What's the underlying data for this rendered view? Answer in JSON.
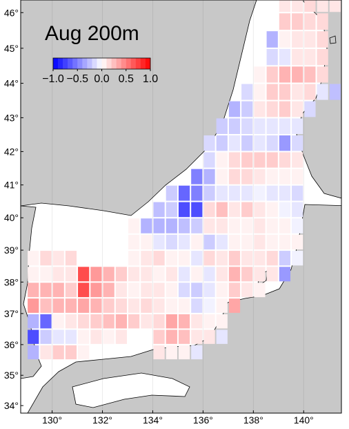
{
  "chart_data": {
    "type": "heatmap",
    "title": "Aug 200m",
    "projection": "mercator",
    "xlim": [
      128.75,
      141.5
    ],
    "ylim": [
      33.75,
      46.35
    ],
    "xticks": [
      {
        "value": 130,
        "label": "130°"
      },
      {
        "value": 132,
        "label": "132°"
      },
      {
        "value": 134,
        "label": "134°"
      },
      {
        "value": 136,
        "label": "136°"
      },
      {
        "value": 138,
        "label": "138°"
      },
      {
        "value": 140,
        "label": "140°"
      }
    ],
    "yticks": [
      {
        "value": 34,
        "label": "34°"
      },
      {
        "value": 35,
        "label": "35°"
      },
      {
        "value": 36,
        "label": "36°"
      },
      {
        "value": 37,
        "label": "37°"
      },
      {
        "value": 38,
        "label": "38°"
      },
      {
        "value": 39,
        "label": "39°"
      },
      {
        "value": 40,
        "label": "40°"
      },
      {
        "value": 41,
        "label": "41°"
      },
      {
        "value": 42,
        "label": "42°"
      },
      {
        "value": 43,
        "label": "43°"
      },
      {
        "value": 44,
        "label": "44°"
      },
      {
        "value": 45,
        "label": "45°"
      },
      {
        "value": 46,
        "label": "46°"
      }
    ],
    "x": [
      129.25,
      129.75,
      130.25,
      130.75,
      131.25,
      131.75,
      132.25,
      132.75,
      133.25,
      133.75,
      134.25,
      134.75,
      135.25,
      135.75,
      136.25,
      136.75,
      137.25,
      137.75,
      138.25,
      138.75,
      139.25,
      139.75,
      140.25,
      140.75,
      141.25
    ],
    "y": [
      46.25,
      45.75,
      45.25,
      44.75,
      44.25,
      43.75,
      43.25,
      42.75,
      42.25,
      41.75,
      41.25,
      40.75,
      40.25,
      39.75,
      39.25,
      38.75,
      38.25,
      37.75,
      37.25,
      36.75,
      36.25,
      35.75
    ],
    "values": [
      [
        null,
        null,
        null,
        null,
        null,
        null,
        null,
        null,
        null,
        null,
        null,
        null,
        null,
        null,
        null,
        null,
        null,
        null,
        null,
        null,
        0.1,
        0.1,
        0.15,
        0.1,
        0.1
      ],
      [
        null,
        null,
        null,
        null,
        null,
        null,
        null,
        null,
        null,
        null,
        null,
        null,
        null,
        null,
        null,
        null,
        null,
        null,
        null,
        null,
        0.2,
        0.2,
        0.15,
        0.15,
        null
      ],
      [
        null,
        null,
        null,
        null,
        null,
        null,
        null,
        null,
        null,
        null,
        null,
        null,
        null,
        null,
        null,
        null,
        null,
        null,
        null,
        -0.3,
        0.05,
        0.1,
        0.1,
        0.15,
        null
      ],
      [
        null,
        null,
        null,
        null,
        null,
        null,
        null,
        null,
        null,
        null,
        null,
        null,
        null,
        null,
        null,
        null,
        null,
        null,
        null,
        -0.15,
        -0.1,
        0.1,
        0.1,
        0.15,
        null
      ],
      [
        null,
        null,
        null,
        null,
        null,
        null,
        null,
        null,
        null,
        null,
        null,
        null,
        null,
        null,
        null,
        null,
        null,
        null,
        0.05,
        0.2,
        0.3,
        0.3,
        0.25,
        0.15,
        null
      ],
      [
        null,
        null,
        null,
        null,
        null,
        null,
        null,
        null,
        null,
        null,
        null,
        null,
        null,
        null,
        null,
        null,
        null,
        -0.15,
        0.05,
        0.2,
        0.2,
        0.1,
        0.15,
        -0.1,
        -0.25
      ],
      [
        null,
        null,
        null,
        null,
        null,
        null,
        null,
        null,
        null,
        null,
        null,
        null,
        null,
        null,
        null,
        null,
        -0.3,
        -0.2,
        0.1,
        0.15,
        0.2,
        0.1,
        -0.15,
        null,
        null
      ],
      [
        null,
        null,
        null,
        null,
        null,
        null,
        null,
        null,
        null,
        null,
        null,
        null,
        null,
        null,
        null,
        -0.2,
        -0.2,
        -0.15,
        -0.1,
        -0.1,
        -0.1,
        -0.1,
        null,
        null,
        null
      ],
      [
        null,
        null,
        null,
        null,
        null,
        null,
        null,
        null,
        null,
        null,
        null,
        null,
        null,
        null,
        -0.15,
        -0.2,
        -0.1,
        -0.2,
        -0.1,
        -0.15,
        -0.4,
        -0.15,
        null,
        null,
        null
      ],
      [
        null,
        null,
        null,
        null,
        null,
        null,
        null,
        null,
        null,
        null,
        null,
        null,
        null,
        null,
        -0.15,
        0.05,
        0.15,
        0.2,
        0.2,
        0.2,
        0.15,
        0.1,
        null,
        null,
        null
      ],
      [
        null,
        null,
        null,
        null,
        null,
        null,
        null,
        null,
        null,
        null,
        null,
        null,
        null,
        -0.5,
        -0.3,
        0.05,
        0.15,
        0.15,
        0.1,
        0.05,
        0.05,
        0.05,
        null,
        null,
        null
      ],
      [
        null,
        null,
        null,
        null,
        null,
        null,
        null,
        null,
        null,
        null,
        null,
        -0.2,
        -0.6,
        -0.5,
        -0.2,
        -0.1,
        -0.1,
        -0.1,
        -0.05,
        -0.1,
        -0.1,
        -0.15,
        null,
        null,
        null
      ],
      [
        null,
        null,
        null,
        null,
        null,
        null,
        null,
        null,
        null,
        null,
        -0.25,
        -0.2,
        -0.7,
        -0.7,
        0.15,
        0.25,
        0.1,
        0.2,
        0.1,
        0.05,
        -0.05,
        -0.1,
        null,
        null,
        null
      ],
      [
        null,
        null,
        null,
        null,
        null,
        null,
        null,
        null,
        0.05,
        -0.3,
        -0.3,
        -0.3,
        -0.25,
        -0.2,
        0.1,
        0.1,
        0.05,
        0.05,
        0.1,
        0.05,
        0.05,
        -0.05,
        null,
        null,
        null
      ],
      [
        null,
        null,
        null,
        null,
        null,
        null,
        null,
        null,
        0.05,
        0.05,
        -0.1,
        -0.15,
        -0.1,
        0.05,
        -0.2,
        -0.1,
        0.05,
        0.05,
        0.1,
        0.05,
        0.05,
        0.05,
        null,
        null,
        null
      ],
      [
        0.05,
        0.15,
        0.1,
        0.15,
        null,
        null,
        null,
        null,
        0.05,
        0.1,
        0.15,
        0.05,
        0.05,
        -0.1,
        0.15,
        0.1,
        0.2,
        0.1,
        0.1,
        0.15,
        -0.2,
        -0.05,
        null,
        null,
        null
      ],
      [
        0.05,
        0.05,
        0.1,
        0.1,
        0.7,
        0.4,
        0.3,
        0.2,
        0.1,
        0.1,
        0.05,
        0.1,
        -0.1,
        0.05,
        -0.1,
        0.1,
        0.3,
        0.2,
        0.1,
        0.1,
        -0.4,
        null,
        null,
        null,
        null
      ],
      [
        0.3,
        0.3,
        0.3,
        0.2,
        0.7,
        0.4,
        0.3,
        0.1,
        0.05,
        0.1,
        0.1,
        0.05,
        -0.15,
        -0.2,
        -0.1,
        0.05,
        0.2,
        0.1,
        0.05,
        null,
        null,
        null,
        null,
        null,
        null
      ],
      [
        0.4,
        0.25,
        0.3,
        0.3,
        0.35,
        0.3,
        0.2,
        0.15,
        0.1,
        0.15,
        0.1,
        0.05,
        0.05,
        -0.15,
        -0.05,
        0.05,
        0.35,
        null,
        null,
        null,
        null,
        null,
        null,
        null,
        null
      ],
      [
        -0.3,
        -0.6,
        0.05,
        0.1,
        0.15,
        0.2,
        0.25,
        0.3,
        0.2,
        0.1,
        0.15,
        0.35,
        0.3,
        0.1,
        0.05,
        0.05,
        null,
        null,
        null,
        null,
        null,
        null,
        null,
        null,
        null
      ],
      [
        -0.7,
        -0.2,
        -0.1,
        -0.1,
        0.05,
        0.1,
        0.05,
        0.1,
        null,
        null,
        0.2,
        0.3,
        0.25,
        0.1,
        0.1,
        -0.1,
        null,
        null,
        null,
        null,
        null,
        null,
        null,
        null,
        null
      ],
      [
        -0.3,
        0.1,
        0.2,
        0.2,
        0.05,
        null,
        null,
        null,
        null,
        null,
        0.1,
        0.05,
        0.05,
        -0.1,
        null,
        null,
        null,
        null,
        null,
        null,
        null,
        null,
        null,
        null,
        null
      ]
    ],
    "colorbar": {
      "lim": [
        -1,
        1
      ],
      "ticks": [
        {
          "value": -1,
          "label": "−1.0"
        },
        {
          "value": -0.5,
          "label": "−0.5"
        },
        {
          "value": 0,
          "label": "0.0"
        },
        {
          "value": 0.5,
          "label": "0.5"
        },
        {
          "value": 1,
          "label": "1.0"
        }
      ],
      "colors": [
        "#0000ff",
        "#ffffff",
        "#ff0000"
      ]
    }
  }
}
